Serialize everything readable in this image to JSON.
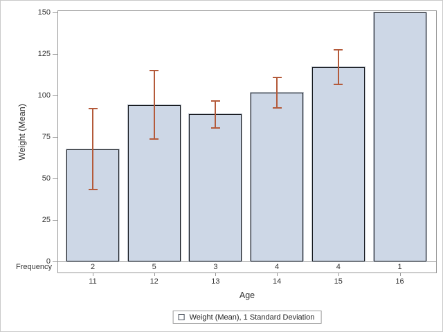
{
  "chart_data": {
    "type": "bar",
    "title": "",
    "xlabel": "Age",
    "ylabel": "Weight (Mean)",
    "ylim": [
      0,
      150
    ],
    "yticks": [
      0,
      25,
      50,
      75,
      100,
      125,
      150
    ],
    "categories": [
      "11",
      "12",
      "13",
      "14",
      "15",
      "16"
    ],
    "series": [
      {
        "name": "Weight (Mean)",
        "values": [
          67.75,
          94.4,
          88.67,
          101.88,
          117.38,
          150
        ]
      }
    ],
    "error_bars": {
      "name": "1 Standard Deviation",
      "sd": [
        24.4,
        20.53,
        8.08,
        9.21,
        10.42,
        null
      ]
    },
    "frequency_row": {
      "label": "Frequency",
      "values": [
        "2",
        "5",
        "3",
        "4",
        "4",
        "1"
      ]
    },
    "legend": {
      "position": "bottom",
      "entries": [
        "Weight (Mean), 1 Standard Deviation"
      ]
    },
    "grid": false,
    "colors": {
      "bar_fill": "#CDD7E6",
      "bar_border": "#14171C",
      "error_bar": "#B45A3A",
      "axis_line": "#949494",
      "tick_text": "#333333",
      "background": "#FFFFFF",
      "frame_border": "#C9C9C9"
    }
  }
}
